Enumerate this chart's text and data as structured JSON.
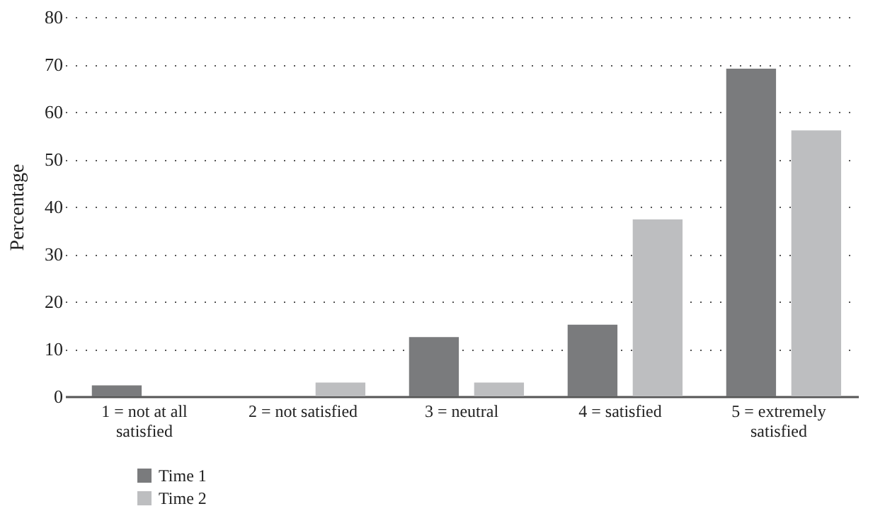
{
  "chart_data": {
    "type": "bar",
    "ylabel": "Percentage",
    "categories": [
      "1 = not at all satisfied",
      "2 = not satisfied",
      "3 = neutral",
      "4 = satisfied",
      "5 = extremely satisfied"
    ],
    "series": [
      {
        "name": "Time 1",
        "color": "#7a7b7d",
        "values": [
          2.3,
          0,
          12.5,
          15.1,
          69.1
        ]
      },
      {
        "name": "Time 2",
        "color": "#bdbec0",
        "values": [
          0,
          2.9,
          2.9,
          37.3,
          56.1
        ]
      }
    ],
    "ylim": [
      0,
      80
    ],
    "yticks": [
      0,
      10,
      20,
      30,
      40,
      50,
      60,
      70,
      80
    ],
    "grid": "y",
    "legend": "bottom left"
  }
}
